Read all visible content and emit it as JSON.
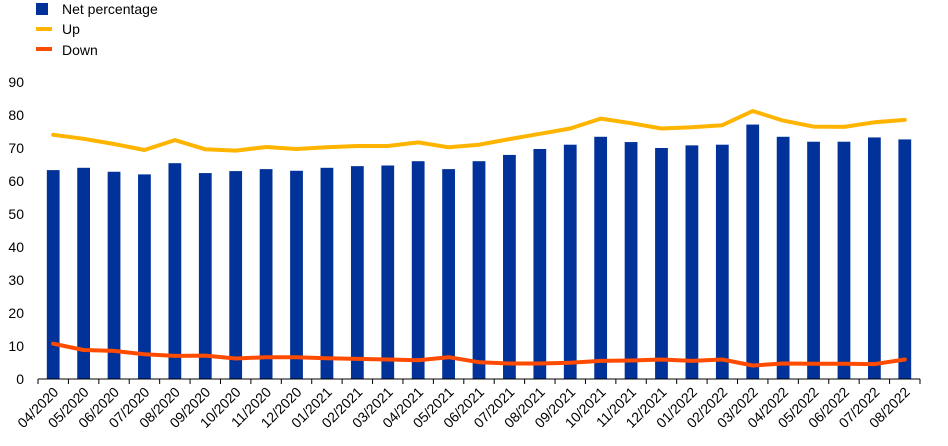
{
  "chart_data": {
    "type": "bar",
    "title": "",
    "xlabel": "",
    "ylabel": "",
    "ylim": [
      0,
      90
    ],
    "yticks": [
      0,
      10,
      20,
      30,
      40,
      50,
      60,
      70,
      80,
      90
    ],
    "grid": false,
    "legend_position": "top-left",
    "categories": [
      "04/2020",
      "05/2020",
      "06/2020",
      "07/2020",
      "08/2020",
      "09/2020",
      "10/2020",
      "11/2020",
      "12/2020",
      "01/2021",
      "02/2021",
      "03/2021",
      "04/2021",
      "05/2021",
      "06/2021",
      "07/2021",
      "08/2021",
      "09/2021",
      "10/2021",
      "11/2021",
      "12/2021",
      "01/2022",
      "02/2022",
      "03/2022",
      "04/2022",
      "05/2022",
      "06/2022",
      "07/2022",
      "08/2022"
    ],
    "series": [
      {
        "name": "Net percentage",
        "type": "bar",
        "color": "#003299",
        "values": [
          63.3,
          64.0,
          62.8,
          62.0,
          65.4,
          62.4,
          63.0,
          63.6,
          63.1,
          64.0,
          64.5,
          64.7,
          66.0,
          63.6,
          66.0,
          67.9,
          69.7,
          71.0,
          73.4,
          71.8,
          70.0,
          70.8,
          71.0,
          77.1,
          73.4,
          71.9,
          71.9,
          73.2,
          72.6
        ]
      },
      {
        "name": "Up",
        "type": "line",
        "color": "#FFB400",
        "values": [
          74.0,
          72.8,
          71.2,
          69.4,
          72.4,
          69.6,
          69.2,
          70.3,
          69.7,
          70.2,
          70.6,
          70.6,
          71.7,
          70.2,
          71.0,
          72.7,
          74.3,
          75.9,
          78.9,
          77.5,
          75.9,
          76.3,
          76.9,
          81.2,
          78.3,
          76.5,
          76.4,
          77.8,
          78.5
        ]
      },
      {
        "name": "Down",
        "type": "line",
        "color": "#FF4B00",
        "values": [
          10.7,
          8.8,
          8.5,
          7.5,
          7.0,
          7.1,
          6.2,
          6.6,
          6.6,
          6.3,
          6.1,
          5.9,
          5.7,
          6.6,
          5.1,
          4.7,
          4.7,
          4.9,
          5.5,
          5.6,
          5.9,
          5.5,
          5.9,
          4.1,
          4.7,
          4.6,
          4.6,
          4.5,
          5.9
        ]
      }
    ]
  }
}
